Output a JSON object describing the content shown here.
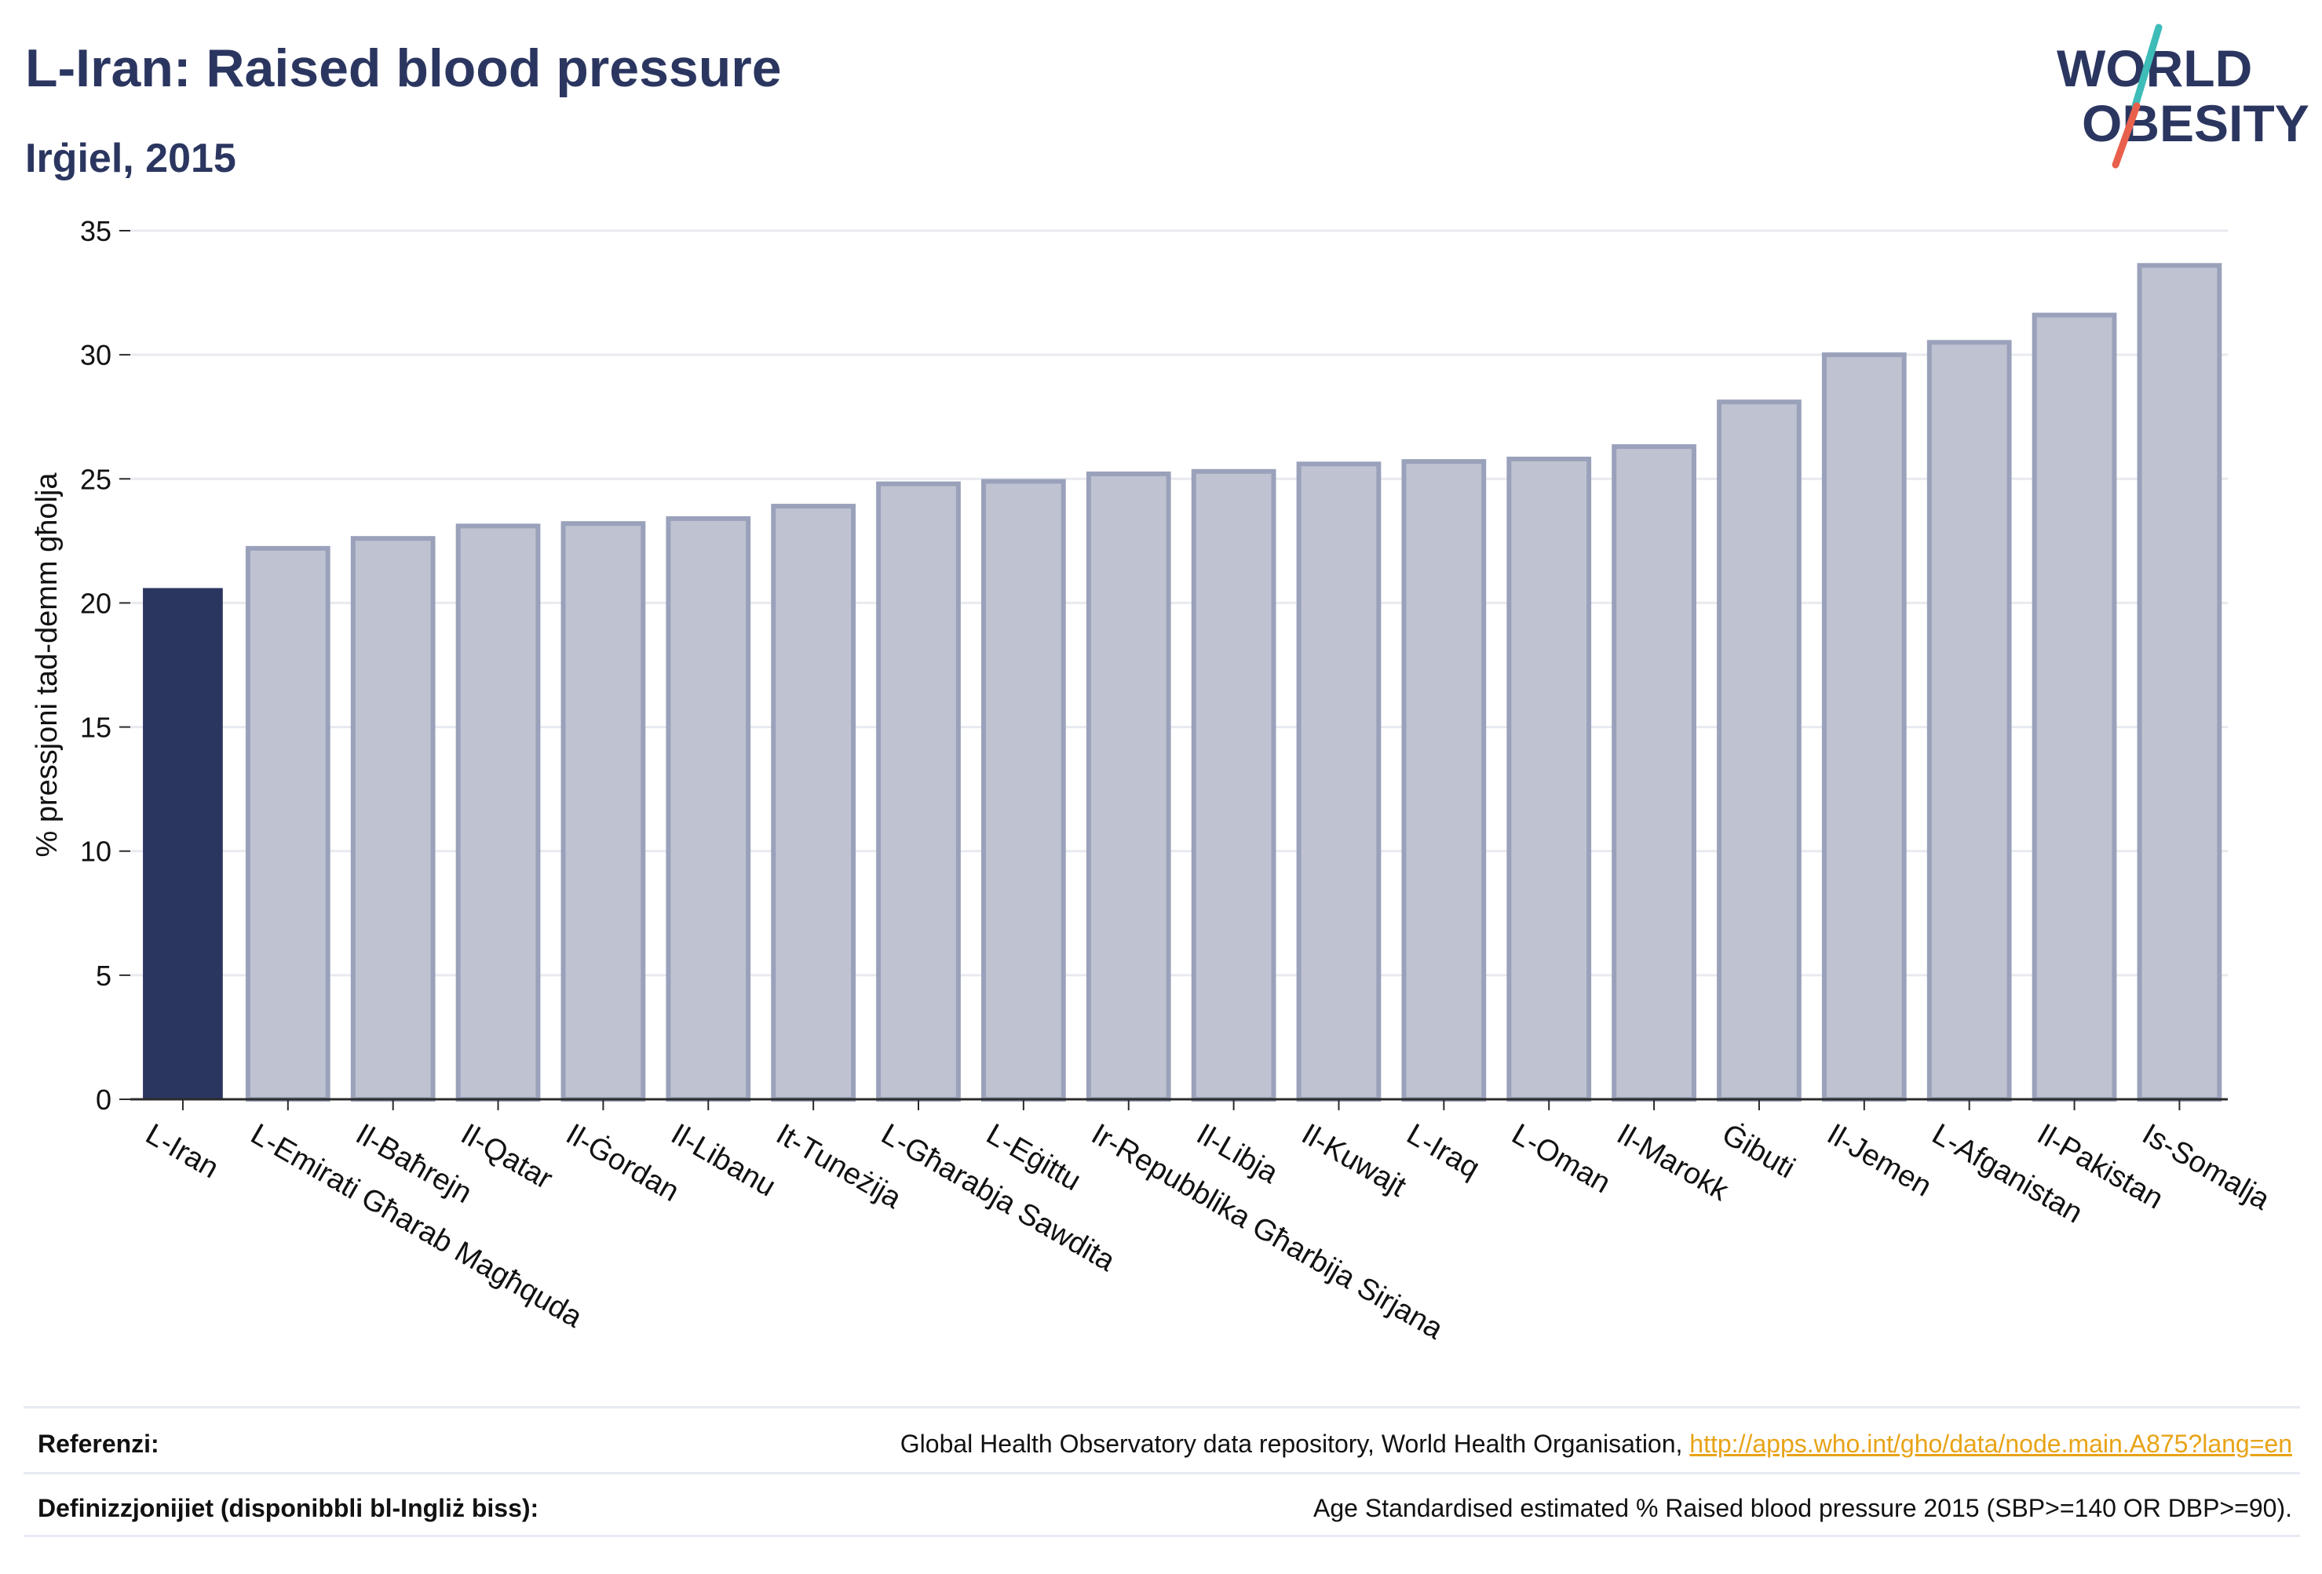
{
  "header": {
    "title": "L-Iran: Raised blood pressure",
    "subtitle": "Irġiel, 2015"
  },
  "logo": {
    "line1": "WORLD",
    "line2": "OBESITY"
  },
  "colors": {
    "highlight": "#2b3660",
    "bar_fill": "#bfc3d1",
    "bar_stroke": "#9aa1ba",
    "grid": "#e8eaf0",
    "logo_slash_teal": "#3dbcb8",
    "logo_slash_red": "#e8604c"
  },
  "chart_data": {
    "type": "bar",
    "title": "L-Iran: Raised blood pressure",
    "subtitle": "Irġiel, 2015",
    "xlabel": "",
    "ylabel": "% pressjoni tad-demm għolja",
    "ylim": [
      0,
      35
    ],
    "yticks": [
      0,
      5,
      10,
      15,
      20,
      25,
      30,
      35
    ],
    "grid": true,
    "highlight_category": "L-Iran",
    "categories": [
      "L-Iran",
      "L-Emirati Għarab Magħquda",
      "Il-Baħrejn",
      "Il-Qatar",
      "Il-Ġordan",
      "Il-Libanu",
      "It-Tuneżija",
      "L-Għarabja Sawdita",
      "L-Eġittu",
      "Ir-Repubblika Għarbija Sirjana",
      "Il-Libja",
      "Il-Kuwajt",
      "L-Iraq",
      "L-Oman",
      "Il-Marokk",
      "Ġibuti",
      "Il-Jemen",
      "L-Afganistan",
      "Il-Pakistan",
      "Is-Somalja"
    ],
    "values": [
      20.6,
      22.2,
      22.6,
      23.1,
      23.2,
      23.4,
      23.9,
      24.8,
      24.9,
      25.2,
      25.3,
      25.6,
      25.7,
      25.8,
      26.3,
      28.1,
      30.0,
      30.5,
      31.6,
      33.6
    ]
  },
  "references": {
    "source_label": "Referenzi:",
    "source_text": "Global Health Observatory data repository, World Health Organisation, ",
    "source_link": "http://apps.who.int/gho/data/node.main.A875?lang=en",
    "definition_label": "Definizzjonijiet (disponibbli bl-Ingliż biss):",
    "definition_text": "Age Standardised estimated % Raised blood pressure 2015 (SBP>=140 OR DBP>=90)."
  }
}
